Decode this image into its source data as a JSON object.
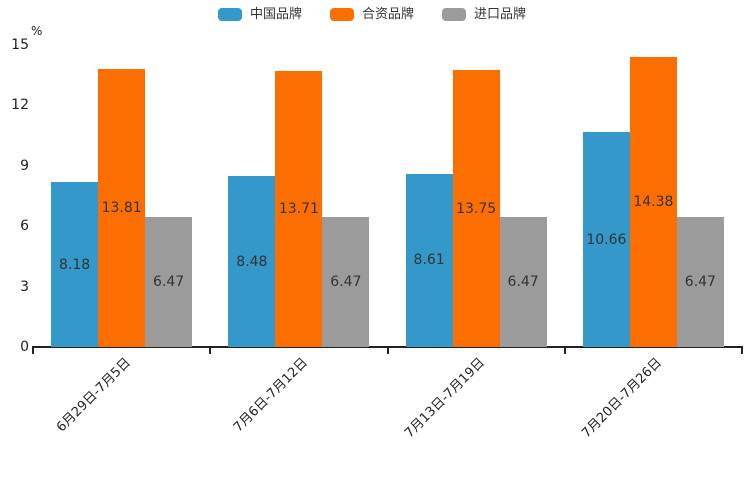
{
  "chart_data": {
    "type": "bar",
    "title": "",
    "unit_label": "%",
    "categories": [
      "6月29日-7月5日",
      "7月6日-7月12日",
      "7月13日-7月19日",
      "7月20日-7月26日"
    ],
    "series": [
      {
        "name": "中国品牌",
        "color": "#3498cb",
        "values": [
          8.18,
          8.48,
          8.61,
          10.66
        ]
      },
      {
        "name": "合资品牌",
        "color": "#fd6e01",
        "values": [
          13.81,
          13.71,
          13.75,
          14.38
        ]
      },
      {
        "name": "进口品牌",
        "color": "#9b9b9b",
        "values": [
          6.47,
          6.47,
          6.47,
          6.47
        ]
      }
    ],
    "y_axis": {
      "min": 0,
      "max": 15,
      "ticks": [
        0,
        3,
        6,
        9,
        12,
        15
      ]
    },
    "legend_position": "top",
    "grid": false,
    "value_labels_shown": true,
    "axis_color": "#222222",
    "label_color": "#333333"
  }
}
